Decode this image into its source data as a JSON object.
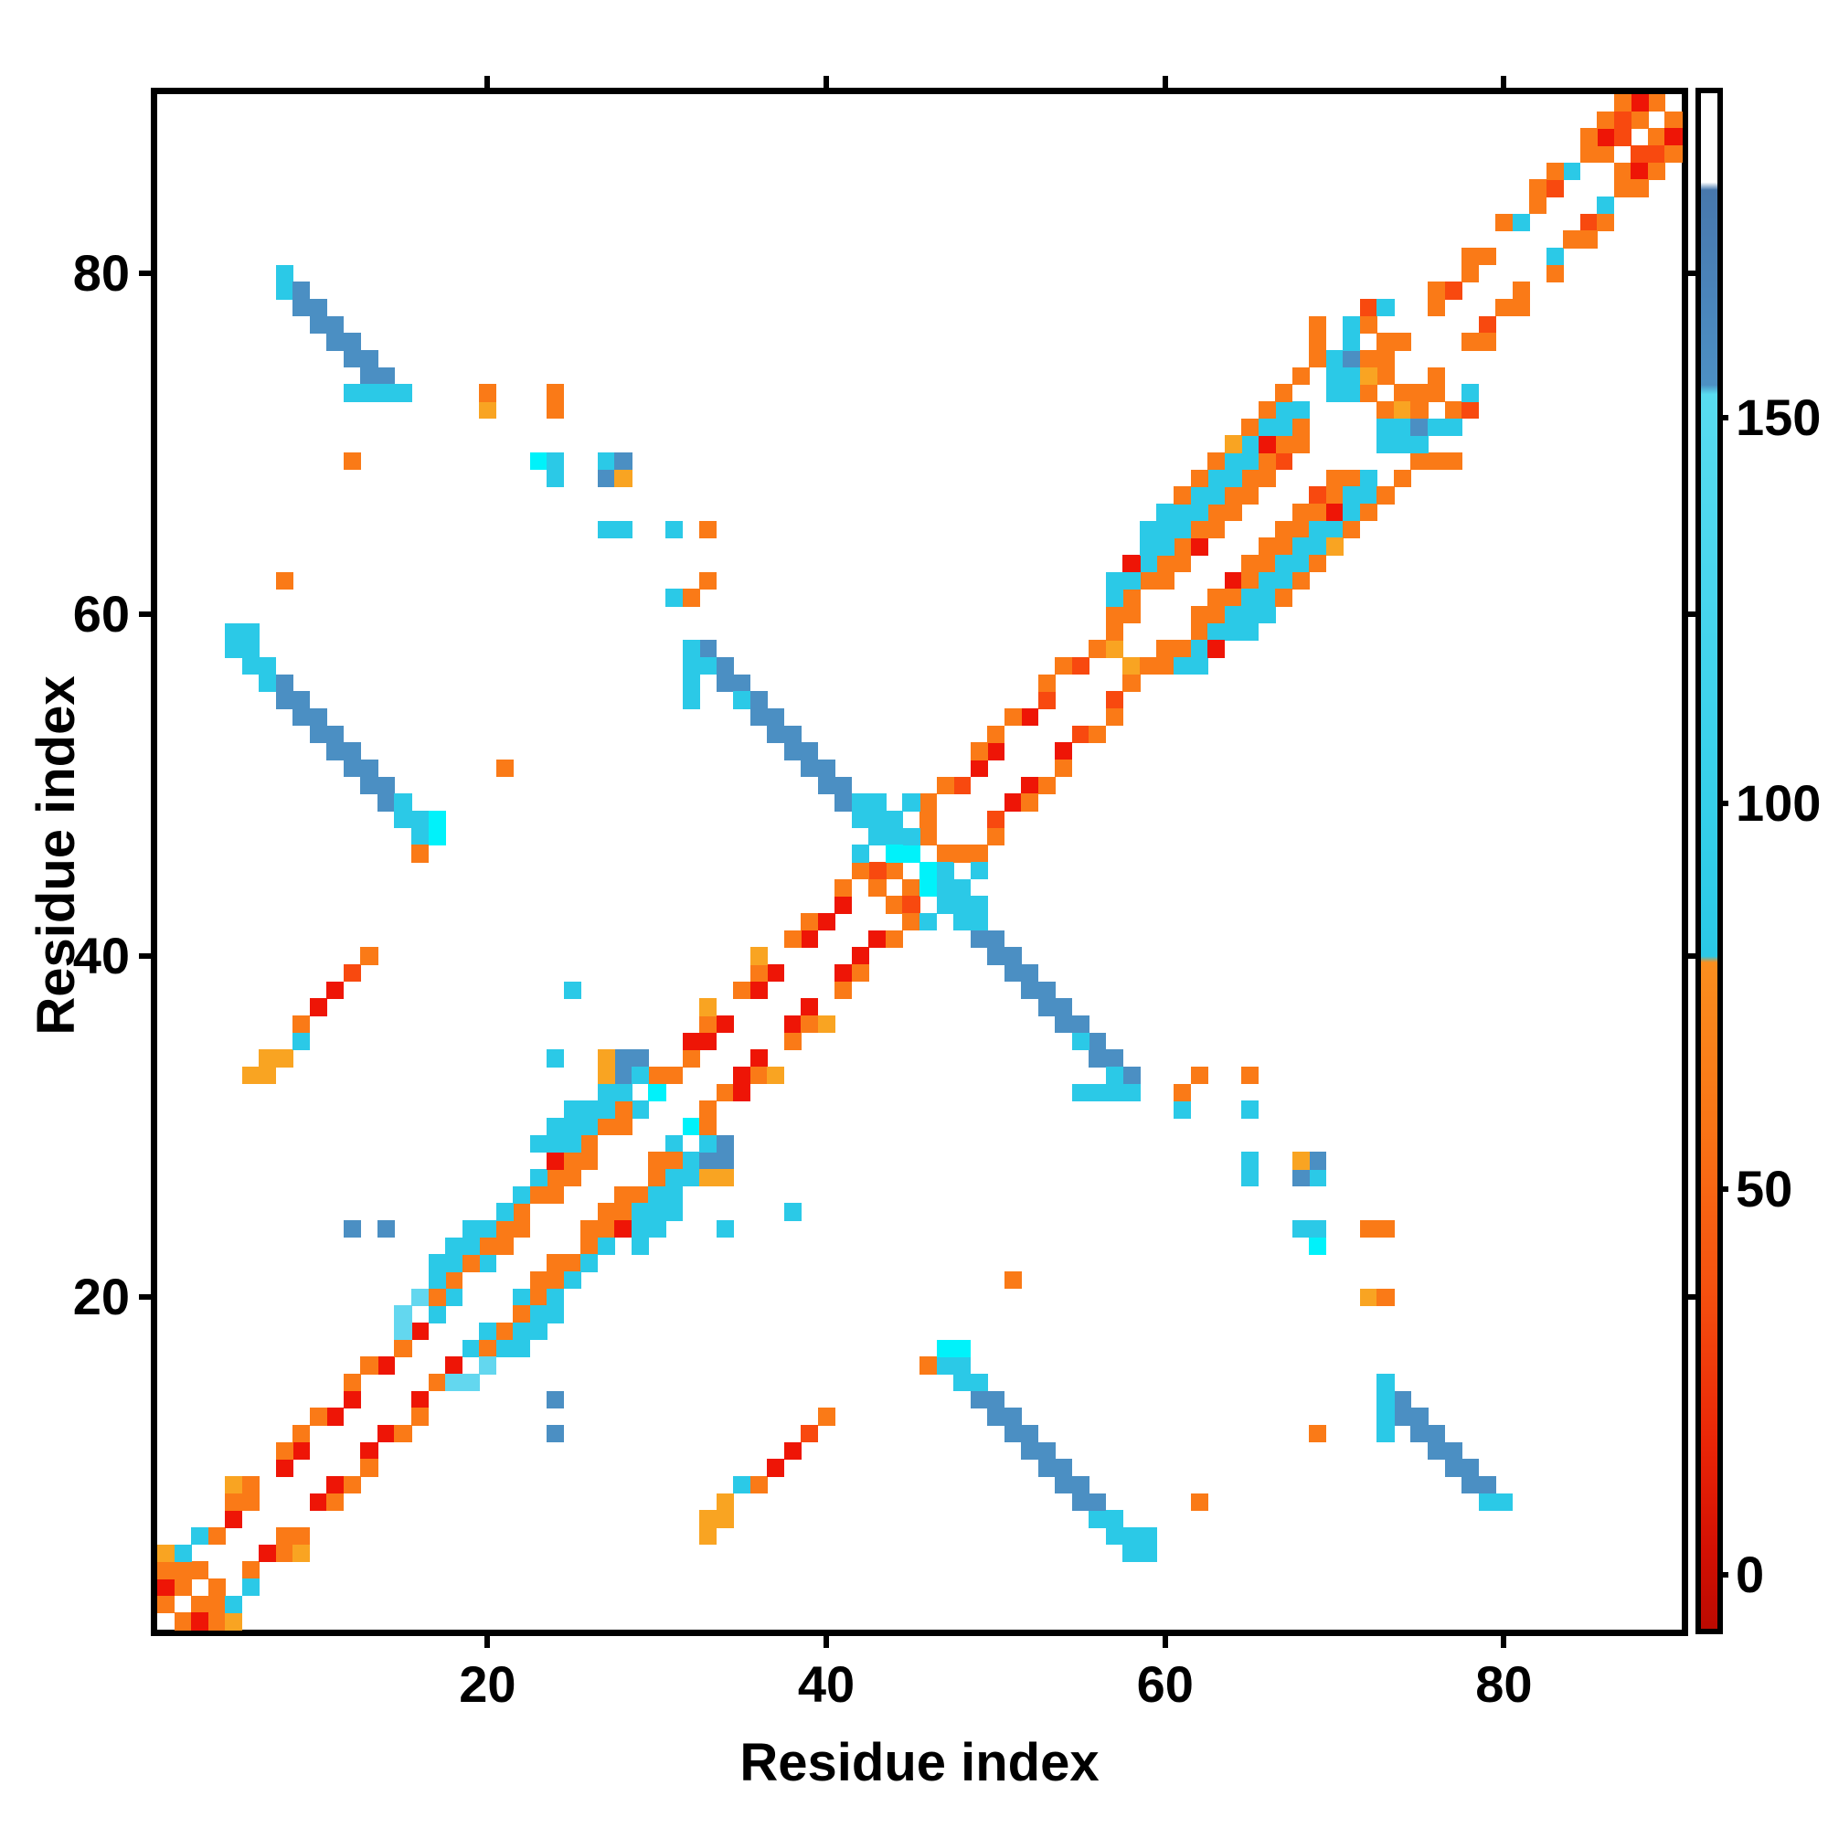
{
  "figure": {
    "xlabel": "Residue index",
    "ylabel": "Residue index"
  },
  "axes": {
    "x_tick_labels": [
      "20",
      "40",
      "60",
      "80"
    ],
    "x_tick_values": [
      20,
      40,
      60,
      80
    ],
    "y_tick_labels": [
      "20",
      "40",
      "60",
      "80"
    ],
    "y_tick_values": [
      20,
      40,
      60,
      80
    ]
  },
  "colorbar": {
    "tick_labels": [
      "0",
      "50",
      "100",
      "150"
    ],
    "tick_values": [
      0,
      50,
      100,
      150
    ],
    "value_range": [
      -7,
      192
    ],
    "sharp_boundary_value": 80,
    "gradient_stops": [
      [
        "0%",
        "#ffffff"
      ],
      [
        "5.8%",
        "#ffffff"
      ],
      [
        "6.3%",
        "#4878ad"
      ],
      [
        "13%",
        "#4a84ba"
      ],
      [
        "19%",
        "#4c90c4"
      ],
      [
        "19.6%",
        "#58dcf0"
      ],
      [
        "32%",
        "#49d6ee"
      ],
      [
        "46%",
        "#36d0ea"
      ],
      [
        "56.2%",
        "#2ac8e6"
      ],
      [
        "56.6%",
        "#fb8e1e"
      ],
      [
        "67%",
        "#f97516"
      ],
      [
        "78%",
        "#f5500f"
      ],
      [
        "88%",
        "#ea2507"
      ],
      [
        "95%",
        "#d31003"
      ],
      [
        "100%",
        "#bb0a01"
      ]
    ]
  },
  "chart_data": {
    "type": "heatmap",
    "title": "",
    "xlabel": "Residue index",
    "ylabel": "Residue index",
    "n_residues": 90,
    "xlim": [
      1,
      90
    ],
    "ylim": [
      1,
      90
    ],
    "grid": false,
    "legend_position": "right-colorbar",
    "symmetric": true,
    "palette": {
      "R": "#ee1506",
      "r": "#f8490f",
      "o": "#fa7a17",
      "a": "#f9a422",
      "c": "#2bc9e7",
      "C": "#00f2fa",
      "t": "#63d7ef",
      "b": "#4b8fc3"
    },
    "cells": [
      [
        1,
        2,
        "o"
      ],
      [
        2,
        3,
        "o"
      ],
      [
        3,
        4,
        "o"
      ],
      [
        43,
        44,
        "o"
      ],
      [
        44,
        45,
        "o"
      ],
      [
        45,
        46,
        "o"
      ],
      [
        46,
        47,
        "o"
      ],
      [
        57,
        58,
        "a"
      ],
      [
        72,
        73,
        "o"
      ],
      [
        73,
        74,
        "o"
      ],
      [
        86,
        87,
        "o"
      ],
      [
        87,
        88,
        "r"
      ],
      [
        88,
        89,
        "o"
      ],
      [
        89,
        90,
        "o"
      ],
      [
        1,
        3,
        "R"
      ],
      [
        2,
        4,
        "o"
      ],
      [
        4,
        6,
        "o"
      ],
      [
        5,
        7,
        "R"
      ],
      [
        6,
        8,
        "o"
      ],
      [
        8,
        10,
        "R"
      ],
      [
        9,
        11,
        "R"
      ],
      [
        11,
        13,
        "R"
      ],
      [
        12,
        14,
        "R"
      ],
      [
        14,
        16,
        "R"
      ],
      [
        15,
        17,
        "o"
      ],
      [
        16,
        18,
        "R"
      ],
      [
        17,
        19,
        "c"
      ],
      [
        18,
        20,
        "c"
      ],
      [
        20,
        22,
        "c"
      ],
      [
        21,
        23,
        "o"
      ],
      [
        22,
        24,
        "o"
      ],
      [
        24,
        26,
        "o"
      ],
      [
        25,
        27,
        "o"
      ],
      [
        26,
        28,
        "o"
      ],
      [
        28,
        30,
        "o"
      ],
      [
        29,
        31,
        "c"
      ],
      [
        30,
        32,
        "C"
      ],
      [
        31,
        33,
        "o"
      ],
      [
        32,
        34,
        "o"
      ],
      [
        33,
        35,
        "R"
      ],
      [
        34,
        36,
        "R"
      ],
      [
        36,
        38,
        "R"
      ],
      [
        37,
        39,
        "R"
      ],
      [
        39,
        41,
        "R"
      ],
      [
        40,
        42,
        "R"
      ],
      [
        41,
        43,
        "R"
      ],
      [
        43,
        45,
        "r"
      ],
      [
        45,
        47,
        "c"
      ],
      [
        46,
        48,
        "o"
      ],
      [
        48,
        50,
        "r"
      ],
      [
        49,
        51,
        "R"
      ],
      [
        50,
        52,
        "R"
      ],
      [
        52,
        54,
        "R"
      ],
      [
        53,
        55,
        "r"
      ],
      [
        55,
        57,
        "r"
      ],
      [
        56,
        58,
        "o"
      ],
      [
        57,
        59,
        "o"
      ],
      [
        58,
        60,
        "o"
      ],
      [
        60,
        62,
        "o"
      ],
      [
        61,
        63,
        "o"
      ],
      [
        62,
        64,
        "R"
      ],
      [
        63,
        65,
        "o"
      ],
      [
        64,
        66,
        "o"
      ],
      [
        65,
        67,
        "o"
      ],
      [
        66,
        68,
        "o"
      ],
      [
        67,
        69,
        "r"
      ],
      [
        68,
        70,
        "o"
      ],
      [
        71,
        73,
        "c"
      ],
      [
        72,
        74,
        "a"
      ],
      [
        73,
        75,
        "o"
      ],
      [
        74,
        76,
        "o"
      ],
      [
        76,
        78,
        "o"
      ],
      [
        77,
        79,
        "r"
      ],
      [
        78,
        80,
        "o"
      ],
      [
        79,
        81,
        "o"
      ],
      [
        81,
        83,
        "c"
      ],
      [
        82,
        84,
        "o"
      ],
      [
        83,
        85,
        "r"
      ],
      [
        84,
        86,
        "c"
      ],
      [
        85,
        87,
        "o"
      ],
      [
        86,
        88,
        "R"
      ],
      [
        87,
        89,
        "r"
      ],
      [
        88,
        90,
        "R"
      ],
      [
        1,
        4,
        "o"
      ],
      [
        5,
        8,
        "o"
      ],
      [
        6,
        9,
        "o"
      ],
      [
        8,
        11,
        "o"
      ],
      [
        9,
        12,
        "o"
      ],
      [
        10,
        13,
        "o"
      ],
      [
        12,
        15,
        "o"
      ],
      [
        13,
        16,
        "o"
      ],
      [
        15,
        18,
        "t"
      ],
      [
        17,
        20,
        "o"
      ],
      [
        18,
        21,
        "o"
      ],
      [
        19,
        22,
        "o"
      ],
      [
        20,
        23,
        "o"
      ],
      [
        21,
        24,
        "o"
      ],
      [
        22,
        25,
        "o"
      ],
      [
        23,
        26,
        "o"
      ],
      [
        24,
        27,
        "o"
      ],
      [
        25,
        28,
        "o"
      ],
      [
        26,
        29,
        "o"
      ],
      [
        27,
        30,
        "o"
      ],
      [
        28,
        31,
        "o"
      ],
      [
        30,
        33,
        "o"
      ],
      [
        32,
        35,
        "R"
      ],
      [
        33,
        36,
        "o"
      ],
      [
        35,
        38,
        "o"
      ],
      [
        36,
        39,
        "o"
      ],
      [
        38,
        41,
        "o"
      ],
      [
        39,
        42,
        "o"
      ],
      [
        41,
        44,
        "o"
      ],
      [
        42,
        45,
        "o"
      ],
      [
        46,
        49,
        "o"
      ],
      [
        47,
        50,
        "o"
      ],
      [
        49,
        52,
        "o"
      ],
      [
        50,
        53,
        "o"
      ],
      [
        51,
        54,
        "o"
      ],
      [
        53,
        56,
        "o"
      ],
      [
        54,
        57,
        "o"
      ],
      [
        57,
        60,
        "o"
      ],
      [
        58,
        61,
        "o"
      ],
      [
        59,
        62,
        "o"
      ],
      [
        60,
        63,
        "o"
      ],
      [
        61,
        64,
        "o"
      ],
      [
        62,
        65,
        "o"
      ],
      [
        63,
        66,
        "o"
      ],
      [
        64,
        67,
        "o"
      ],
      [
        65,
        68,
        "o"
      ],
      [
        66,
        69,
        "o"
      ],
      [
        67,
        70,
        "o"
      ],
      [
        68,
        71,
        "o"
      ],
      [
        72,
        75,
        "o"
      ],
      [
        73,
        76,
        "o"
      ],
      [
        76,
        79,
        "o"
      ],
      [
        78,
        81,
        "o"
      ],
      [
        80,
        83,
        "o"
      ],
      [
        82,
        85,
        "o"
      ],
      [
        83,
        86,
        "o"
      ],
      [
        85,
        88,
        "o"
      ],
      [
        86,
        89,
        "o"
      ],
      [
        87,
        90,
        "o"
      ],
      [
        1,
        5,
        "a"
      ],
      [
        5,
        9,
        "a"
      ],
      [
        33,
        37,
        "a"
      ],
      [
        36,
        40,
        "a"
      ],
      [
        17,
        21,
        "c"
      ],
      [
        18,
        22,
        "c"
      ],
      [
        19,
        23,
        "c"
      ],
      [
        20,
        24,
        "c"
      ],
      [
        21,
        25,
        "c"
      ],
      [
        22,
        26,
        "c"
      ],
      [
        23,
        27,
        "c"
      ],
      [
        24,
        28,
        "R"
      ],
      [
        25,
        29,
        "c"
      ],
      [
        26,
        30,
        "c"
      ],
      [
        27,
        31,
        "c"
      ],
      [
        28,
        32,
        "c"
      ],
      [
        42,
        46,
        "c"
      ],
      [
        43,
        47,
        "c"
      ],
      [
        44,
        48,
        "c"
      ],
      [
        45,
        49,
        "c"
      ],
      [
        57,
        61,
        "c"
      ],
      [
        58,
        62,
        "c"
      ],
      [
        59,
        63,
        "c"
      ],
      [
        60,
        64,
        "c"
      ],
      [
        61,
        65,
        "c"
      ],
      [
        62,
        66,
        "c"
      ],
      [
        63,
        67,
        "c"
      ],
      [
        64,
        68,
        "c"
      ],
      [
        65,
        69,
        "c"
      ],
      [
        66,
        70,
        "R"
      ],
      [
        67,
        71,
        "c"
      ],
      [
        68,
        72,
        "c"
      ],
      [
        17,
        22,
        "c"
      ],
      [
        18,
        23,
        "c"
      ],
      [
        19,
        24,
        "c"
      ],
      [
        24,
        29,
        "c"
      ],
      [
        25,
        30,
        "c"
      ],
      [
        26,
        31,
        "c"
      ],
      [
        27,
        32,
        "c"
      ],
      [
        57,
        62,
        "c"
      ],
      [
        58,
        63,
        "R"
      ],
      [
        59,
        64,
        "c"
      ],
      [
        60,
        65,
        "c"
      ],
      [
        61,
        66,
        "c"
      ],
      [
        62,
        67,
        "c"
      ],
      [
        63,
        68,
        "c"
      ],
      [
        64,
        69,
        "c"
      ],
      [
        65,
        70,
        "c"
      ],
      [
        66,
        71,
        "c"
      ],
      [
        67,
        72,
        "c"
      ],
      [
        23,
        29,
        "c"
      ],
      [
        24,
        30,
        "c"
      ],
      [
        25,
        31,
        "c"
      ],
      [
        59,
        65,
        "c"
      ],
      [
        60,
        66,
        "c"
      ],
      [
        61,
        67,
        "o"
      ],
      [
        62,
        68,
        "o"
      ],
      [
        63,
        69,
        "o"
      ],
      [
        64,
        70,
        "a"
      ],
      [
        65,
        71,
        "o"
      ],
      [
        66,
        72,
        "o"
      ],
      [
        67,
        73,
        "o"
      ],
      [
        68,
        74,
        "o"
      ],
      [
        69,
        75,
        "o"
      ],
      [
        69,
        76,
        "o"
      ],
      [
        69,
        77,
        "o"
      ],
      [
        70,
        73,
        "c"
      ],
      [
        70,
        74,
        "c"
      ],
      [
        70,
        75,
        "c"
      ],
      [
        71,
        74,
        "c"
      ],
      [
        71,
        75,
        "b"
      ],
      [
        71,
        76,
        "c"
      ],
      [
        71,
        77,
        "c"
      ],
      [
        72,
        77,
        "o"
      ],
      [
        72,
        78,
        "r"
      ],
      [
        73,
        78,
        "c"
      ],
      [
        12,
        24,
        "b"
      ],
      [
        14,
        24,
        "b"
      ],
      [
        15,
        19,
        "t"
      ],
      [
        16,
        20,
        "t"
      ],
      [
        28,
        33,
        "b"
      ],
      [
        28,
        34,
        "b"
      ],
      [
        29,
        34,
        "b"
      ],
      [
        24,
        34,
        "c"
      ],
      [
        27,
        33,
        "a"
      ],
      [
        27,
        34,
        "a"
      ],
      [
        29,
        33,
        "c"
      ],
      [
        33,
        58,
        "b"
      ],
      [
        34,
        57,
        "b"
      ],
      [
        35,
        56,
        "b"
      ],
      [
        36,
        55,
        "b"
      ],
      [
        37,
        54,
        "b"
      ],
      [
        38,
        53,
        "b"
      ],
      [
        39,
        52,
        "b"
      ],
      [
        40,
        51,
        "b"
      ],
      [
        41,
        50,
        "b"
      ],
      [
        42,
        49,
        "c"
      ],
      [
        43,
        48,
        "c"
      ],
      [
        44,
        47,
        "c"
      ],
      [
        45,
        46,
        "C"
      ],
      [
        33,
        57,
        "c"
      ],
      [
        34,
        56,
        "b"
      ],
      [
        35,
        55,
        "c"
      ],
      [
        36,
        54,
        "b"
      ],
      [
        37,
        53,
        "b"
      ],
      [
        38,
        52,
        "b"
      ],
      [
        39,
        51,
        "b"
      ],
      [
        40,
        50,
        "b"
      ],
      [
        41,
        49,
        "b"
      ],
      [
        42,
        48,
        "c"
      ],
      [
        43,
        47,
        "c"
      ],
      [
        44,
        46,
        "C"
      ],
      [
        43,
        49,
        "c"
      ],
      [
        32,
        55,
        "c"
      ],
      [
        32,
        56,
        "c"
      ],
      [
        32,
        57,
        "c"
      ],
      [
        32,
        58,
        "c"
      ],
      [
        5,
        58,
        "c"
      ],
      [
        6,
        57,
        "c"
      ],
      [
        7,
        56,
        "c"
      ],
      [
        8,
        55,
        "b"
      ],
      [
        9,
        54,
        "b"
      ],
      [
        10,
        53,
        "b"
      ],
      [
        11,
        52,
        "b"
      ],
      [
        12,
        51,
        "b"
      ],
      [
        13,
        50,
        "b"
      ],
      [
        14,
        49,
        "b"
      ],
      [
        15,
        48,
        "c"
      ],
      [
        16,
        47,
        "c"
      ],
      [
        5,
        59,
        "c"
      ],
      [
        6,
        58,
        "c"
      ],
      [
        7,
        57,
        "c"
      ],
      [
        8,
        56,
        "b"
      ],
      [
        9,
        55,
        "b"
      ],
      [
        10,
        54,
        "b"
      ],
      [
        11,
        53,
        "b"
      ],
      [
        12,
        52,
        "b"
      ],
      [
        13,
        51,
        "b"
      ],
      [
        14,
        50,
        "b"
      ],
      [
        15,
        49,
        "c"
      ],
      [
        16,
        48,
        "c"
      ],
      [
        17,
        47,
        "C"
      ],
      [
        6,
        59,
        "c"
      ],
      [
        16,
        46,
        "o"
      ],
      [
        17,
        48,
        "C"
      ],
      [
        8,
        80,
        "c"
      ],
      [
        8,
        79,
        "c"
      ],
      [
        9,
        79,
        "b"
      ],
      [
        9,
        78,
        "b"
      ],
      [
        10,
        78,
        "b"
      ],
      [
        10,
        77,
        "b"
      ],
      [
        11,
        77,
        "b"
      ],
      [
        11,
        76,
        "b"
      ],
      [
        12,
        76,
        "b"
      ],
      [
        12,
        75,
        "b"
      ],
      [
        13,
        75,
        "b"
      ],
      [
        13,
        74,
        "b"
      ],
      [
        14,
        74,
        "b"
      ],
      [
        14,
        73,
        "c"
      ],
      [
        15,
        73,
        "c"
      ],
      [
        12,
        73,
        "c"
      ],
      [
        13,
        73,
        "c"
      ],
      [
        6,
        33,
        "a"
      ],
      [
        7,
        33,
        "a"
      ],
      [
        7,
        34,
        "a"
      ],
      [
        8,
        34,
        "a"
      ],
      [
        9,
        35,
        "c"
      ],
      [
        9,
        36,
        "o"
      ],
      [
        10,
        37,
        "R"
      ],
      [
        11,
        38,
        "R"
      ],
      [
        12,
        39,
        "r"
      ],
      [
        13,
        40,
        "o"
      ],
      [
        8,
        62,
        "o"
      ],
      [
        12,
        69,
        "o"
      ],
      [
        21,
        51,
        "o"
      ],
      [
        25,
        38,
        "c"
      ],
      [
        20,
        72,
        "a"
      ],
      [
        20,
        73,
        "o"
      ],
      [
        24,
        72,
        "o"
      ],
      [
        24,
        73,
        "o"
      ],
      [
        23,
        69,
        "C"
      ],
      [
        24,
        69,
        "c"
      ],
      [
        24,
        68,
        "c"
      ],
      [
        27,
        69,
        "c"
      ],
      [
        28,
        69,
        "b"
      ],
      [
        27,
        68,
        "b"
      ],
      [
        28,
        68,
        "a"
      ],
      [
        27,
        65,
        "c"
      ],
      [
        28,
        65,
        "c"
      ],
      [
        31,
        65,
        "c"
      ],
      [
        33,
        65,
        "o"
      ],
      [
        31,
        61,
        "c"
      ],
      [
        32,
        61,
        "o"
      ],
      [
        33,
        62,
        "o"
      ],
      [
        2,
        5,
        "c"
      ],
      [
        3,
        6,
        "c"
      ]
    ]
  }
}
